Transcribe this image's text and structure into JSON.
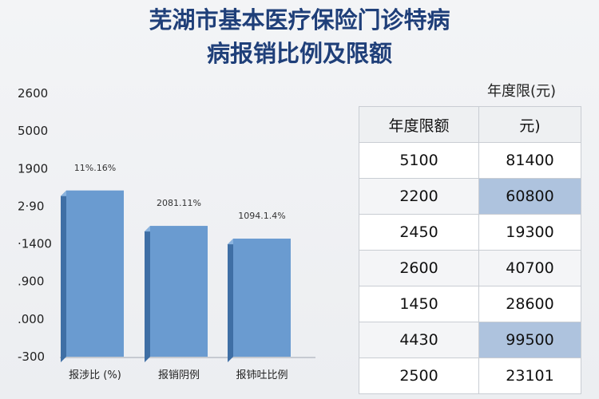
{
  "title_line1": "芜湖市基本医疗保险门诊特病",
  "title_line2": "病报销比例及限额",
  "chart_data": {
    "type": "bar",
    "y_ticks": [
      "2600",
      "5000",
      "1900",
      "2·90",
      "·1400",
      ".900",
      ".000",
      "-300"
    ],
    "categories": [
      "报涉比 (%)",
      "报销阴例",
      "报铈吐比例"
    ],
    "values": [
      1530,
      1140,
      1000
    ],
    "data_labels": [
      "11%.16%",
      "2081.11%",
      "1094.1.4%"
    ],
    "ylim": [
      -300,
      2600
    ],
    "grid": false,
    "colors": {
      "bar": "#6a9bd0",
      "bar_top": "#8ab3de",
      "bar_side": "#3f6fa5"
    }
  },
  "table": {
    "caption": "年度限(元)",
    "headers": [
      "年度限额",
      "元)"
    ],
    "rows": [
      [
        "5100",
        "81400"
      ],
      [
        "2200",
        "60800"
      ],
      [
        "2450",
        "19300"
      ],
      [
        "2600",
        "40700"
      ],
      [
        "1450",
        "28600"
      ],
      [
        "4430",
        "99500"
      ],
      [
        "2500",
        "23101"
      ]
    ],
    "highlighted_cells": [
      "60800",
      "99500"
    ],
    "highlight_color": "#aec3de"
  }
}
